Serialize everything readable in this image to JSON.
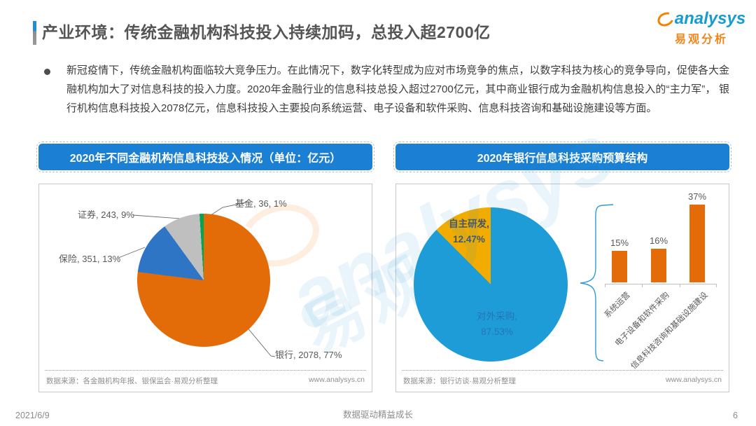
{
  "header": {
    "title": "产业环境：传统金融机构科技投入持续加码，总投入超2700亿",
    "accent_color": "#1E8FD5",
    "logo_brand": "analysys",
    "logo_cn": "易观分析"
  },
  "intro": {
    "bullet_text": "新冠疫情下，传统金融机构面临较大竞争压力。在此情况下，数字化转型成为应对市场竞争的焦点，以数字科技为核心的竞争导向，促使各大金融机构加大了对信息科技的投入力度。2020年金融行业的信息科技总投入超过2700亿元，其中商业银行成为金融机构信息投入的“主力军”， 银行机构信息科技投入2078亿元，信息科技投入主要投向系统运营、电子设备和软件采购、信息科技咨询和基础设施建设等方面。"
  },
  "left_panel": {
    "header": "2020年不同金融机构信息科技投入情况（单位：亿元）",
    "source": "数据来源：各金融机构年报、银保监会·易观分析整理",
    "website": "www.analysys.cn"
  },
  "right_panel": {
    "header": "2020年银行信息科技采购预算结构",
    "source": "数据来源：银行访谈·易观分析整理",
    "website": "www.analysys.cn"
  },
  "footer": {
    "date": "2021/6/9",
    "slogan": "数据驱动精益成长",
    "page": "6"
  },
  "watermark": {
    "brand": "analysys",
    "cn": "易观"
  },
  "chart_data": [
    {
      "type": "pie",
      "title": "2020年不同金融机构信息科技投入情况（单位：亿元）",
      "labels": [
        "银行",
        "保险",
        "证券",
        "基金"
      ],
      "values": [
        2078,
        351,
        243,
        36
      ],
      "percents": [
        77,
        13,
        9,
        1
      ],
      "colors": [
        "#E36C09",
        "#2E75C6",
        "#BFBFBF",
        "#00A651"
      ],
      "callouts": [
        "银行, 2078, 77%",
        "保险, 351, 13%",
        "证券, 243, 9%",
        "基金, 36, 1%"
      ],
      "start_angle": "top",
      "direction": "clockwise",
      "legend_position": "callout-labels"
    },
    {
      "type": "pie",
      "title": "2020年银行信息科技采购预算结构（自主研发 vs 对外采购）",
      "labels": [
        "对外采购",
        "自主研发"
      ],
      "values": [
        87.53,
        12.47
      ],
      "colors": [
        "#1E9CD8",
        "#F2AC00"
      ],
      "callouts": [
        {
          "name": "对外采购,",
          "pct": "87.53%"
        },
        {
          "name": "自主研发,",
          "pct": "12.47%"
        }
      ],
      "start_angle": "top",
      "direction": "clockwise"
    },
    {
      "type": "bar",
      "title": "对外采购结构",
      "categories": [
        "系统运营",
        "电子设备和软件采购",
        "信息科技咨询和基础设施建设"
      ],
      "values": [
        15,
        16,
        37
      ],
      "data_labels": [
        "15%",
        "16%",
        "37%"
      ],
      "bar_color": "#E36C09",
      "ylim": [
        0,
        40
      ],
      "grid": false
    }
  ]
}
